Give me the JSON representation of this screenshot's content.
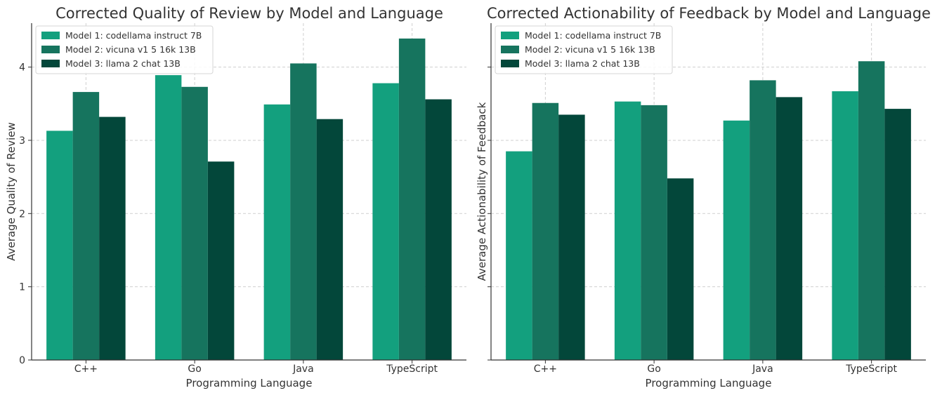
{
  "palette": [
    "#13a07e",
    "#16745e",
    "#03473a"
  ],
  "chart_data": [
    {
      "type": "bar",
      "title": "Corrected Quality of Review by Model and Language",
      "xlabel": "Programming Language",
      "ylabel": "Average Quality of Review",
      "categories": [
        "C++",
        "Go",
        "Java",
        "TypeScript"
      ],
      "ylim": [
        0,
        4.6
      ],
      "yticks": [
        0,
        1,
        2,
        3,
        4
      ],
      "show_ytick_labels": true,
      "grid": true,
      "legend_position": "top-left",
      "series": [
        {
          "name": "Model 1: codellama instruct 7B",
          "values": [
            3.13,
            3.89,
            3.49,
            3.78
          ]
        },
        {
          "name": "Model 2: vicuna v1 5 16k 13B",
          "values": [
            3.66,
            3.73,
            4.05,
            4.39
          ]
        },
        {
          "name": "Model 3: llama 2 chat 13B",
          "values": [
            3.32,
            2.71,
            3.29,
            3.56
          ]
        }
      ]
    },
    {
      "type": "bar",
      "title": "Corrected Actionability of Feedback by Model and Language",
      "xlabel": "Programming Language",
      "ylabel": "Average Actionability of Feedback",
      "categories": [
        "C++",
        "Go",
        "Java",
        "TypeScript"
      ],
      "ylim": [
        0,
        4.6
      ],
      "yticks": [
        0,
        1,
        2,
        3,
        4
      ],
      "show_ytick_labels": false,
      "grid": true,
      "legend_position": "top-left",
      "series": [
        {
          "name": "Model 1: codellama instruct 7B",
          "values": [
            2.85,
            3.53,
            3.27,
            3.67
          ]
        },
        {
          "name": "Model 2: vicuna v1 5 16k 13B",
          "values": [
            3.51,
            3.48,
            3.82,
            4.08
          ]
        },
        {
          "name": "Model 3: llama 2 chat 13B",
          "values": [
            3.35,
            2.48,
            3.59,
            3.43
          ]
        }
      ]
    }
  ]
}
